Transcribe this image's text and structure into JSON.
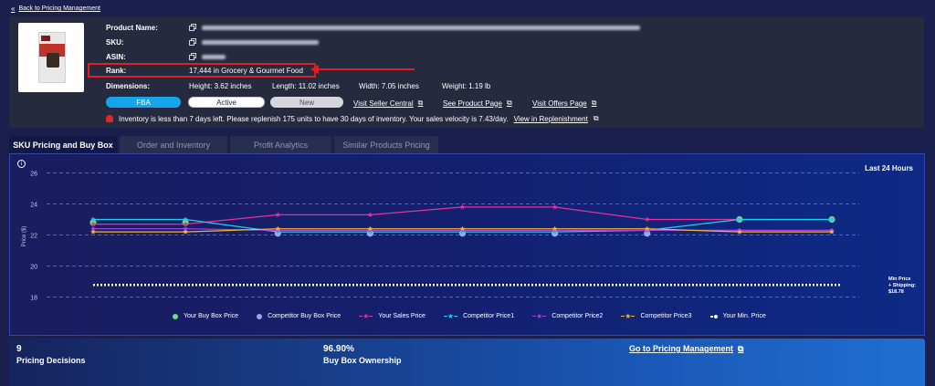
{
  "nav": {
    "back_label": "Back to Pricing Management"
  },
  "product": {
    "labels": {
      "name": "Product Name:",
      "sku": "SKU:",
      "asin": "ASIN:",
      "rank": "Rank:",
      "dimensions": "Dimensions:"
    },
    "rank_value": "17,444 in Grocery & Gourmet Food",
    "dimensions": {
      "height": "Height: 3.62 inches",
      "length": "Length: 11.02 inches",
      "width": "Width: 7.05 inches",
      "weight": "Weight: 1.19 lb"
    },
    "badges": {
      "fba": "FBA",
      "active": "Active",
      "new": "New"
    },
    "links": {
      "seller_central": "Visit Seller Central",
      "product_page": "See Product Page",
      "offers_page": "Visit Offers Page"
    },
    "warning_text": "Inventory is less than 7 days left. Please replenish 175 units to have 30 days of inventory. Your sales velocity is 7.43/day.",
    "warning_link": "View in Replenishment"
  },
  "tabs": [
    {
      "label": "SKU Pricing and Buy Box",
      "active": true
    },
    {
      "label": "Order and Inventory",
      "active": false
    },
    {
      "label": "Profit Analytics",
      "active": false
    },
    {
      "label": "Similar Products Pricing",
      "active": false
    }
  ],
  "chart_data": {
    "type": "line",
    "title": "",
    "timeframe_label": "Last 24 Hours",
    "ylabel": "Price ($)",
    "ylim": [
      17.5,
      26.5
    ],
    "yticks": [
      18,
      20,
      22,
      24,
      26
    ],
    "x": [
      0,
      1,
      2,
      3,
      4,
      5,
      6,
      7,
      8
    ],
    "series": [
      {
        "name": "Your Buy Box Price",
        "color": "#6fe07a",
        "marker": "circle",
        "values": [
          22.8,
          22.8,
          null,
          null,
          null,
          null,
          null,
          23.0,
          23.0
        ]
      },
      {
        "name": "Competitor Buy Box Price",
        "color": "#9fa3f5",
        "marker": "circle",
        "values": [
          null,
          null,
          22.1,
          22.1,
          22.1,
          22.1,
          22.1,
          null,
          null
        ]
      },
      {
        "name": "Your Sales Price",
        "color": "#e8309a",
        "marker": "star",
        "values": [
          22.7,
          22.7,
          23.3,
          23.3,
          23.8,
          23.8,
          23.0,
          23.0,
          23.0
        ]
      },
      {
        "name": "Competitor Price1",
        "color": "#19d2f2",
        "marker": "star",
        "values": [
          23.0,
          23.0,
          22.2,
          22.2,
          22.2,
          22.2,
          22.3,
          23.0,
          23.0
        ]
      },
      {
        "name": "Competitor Price2",
        "color": "#b040e0",
        "marker": "star",
        "values": [
          22.4,
          22.4,
          22.3,
          22.3,
          22.3,
          22.3,
          22.3,
          22.3,
          22.3
        ]
      },
      {
        "name": "Competitor Price3",
        "color": "#f0b830",
        "marker": "star",
        "values": [
          22.2,
          22.2,
          22.4,
          22.4,
          22.4,
          22.4,
          22.4,
          22.2,
          22.2
        ]
      },
      {
        "name": "Your Min. Price",
        "color": "#ffffff",
        "marker": "square",
        "dashed": true,
        "values": [
          18.78,
          18.78,
          18.78,
          18.78,
          18.78,
          18.78,
          18.78,
          18.78,
          18.78
        ]
      }
    ],
    "min_price_annotation": [
      "Min Price",
      "+ Shipping:",
      "$18.78"
    ],
    "grid": true
  },
  "stats": {
    "decisions_value": "9",
    "decisions_label": "Pricing Decisions",
    "ownership_value": "96.90%",
    "ownership_label": "Buy Box Ownership",
    "go_link": "Go to Pricing Management"
  }
}
